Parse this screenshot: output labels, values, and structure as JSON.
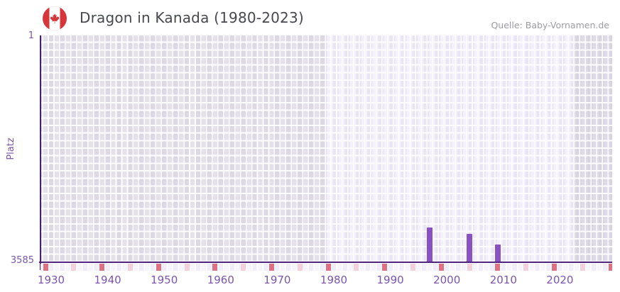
{
  "header": {
    "title": "Dragon in Kanada (1980-2023)",
    "source": "Quelle: Baby-Vornamen.de",
    "flag_icon": "canada-flag-icon"
  },
  "chart_data": {
    "type": "bar",
    "title": "Dragon in Kanada (1980-2023)",
    "ylabel": "Platz",
    "xlabel": "",
    "y_axis": {
      "top_tick": "1",
      "bottom_tick": "3585",
      "min": 1,
      "max": 3585,
      "inverted": true,
      "note": "rank 1 at top, rank 3585 at baseline"
    },
    "x_axis": {
      "tick_years": [
        1930,
        1940,
        1950,
        1960,
        1970,
        1980,
        1990,
        2000,
        2010,
        2020
      ],
      "range": [
        1928,
        2030
      ]
    },
    "bars": [
      {
        "year": 1997,
        "rank": 3040
      },
      {
        "year": 2004,
        "rank": 3140
      },
      {
        "year": 2009,
        "rank": 3300
      }
    ],
    "regions": [
      {
        "name": "outside-data-left",
        "from": 1928,
        "to": 1978,
        "colA": "#dcd8e4",
        "colB": "#e5e1eb"
      },
      {
        "name": "data-range",
        "from": 1979,
        "to": 2022,
        "colA": "#eae5f5",
        "colB": "#f5f1fc"
      },
      {
        "name": "outside-data-right",
        "from": 2023,
        "to": 2030,
        "colA": "#dfdce9",
        "colB": "#d8d4e2"
      }
    ],
    "axis_markers": {
      "red_years": [
        1929,
        1939,
        1949,
        1959,
        1969,
        1979,
        1989,
        1999,
        2009,
        2019,
        2029
      ],
      "pink_years": [
        1934,
        1944,
        1954,
        1964,
        1974,
        1984,
        1994,
        2004,
        2014,
        2024
      ]
    },
    "grid": true,
    "legend": false
  },
  "colors": {
    "bar": "#8a51c4",
    "axis_line": "#4f2480",
    "tick_label": "#7b54ac",
    "marker_red": "#df7081",
    "marker_pink": "#f3d0dc",
    "title_text": "#45484d",
    "source_text": "#9b9ba3"
  }
}
